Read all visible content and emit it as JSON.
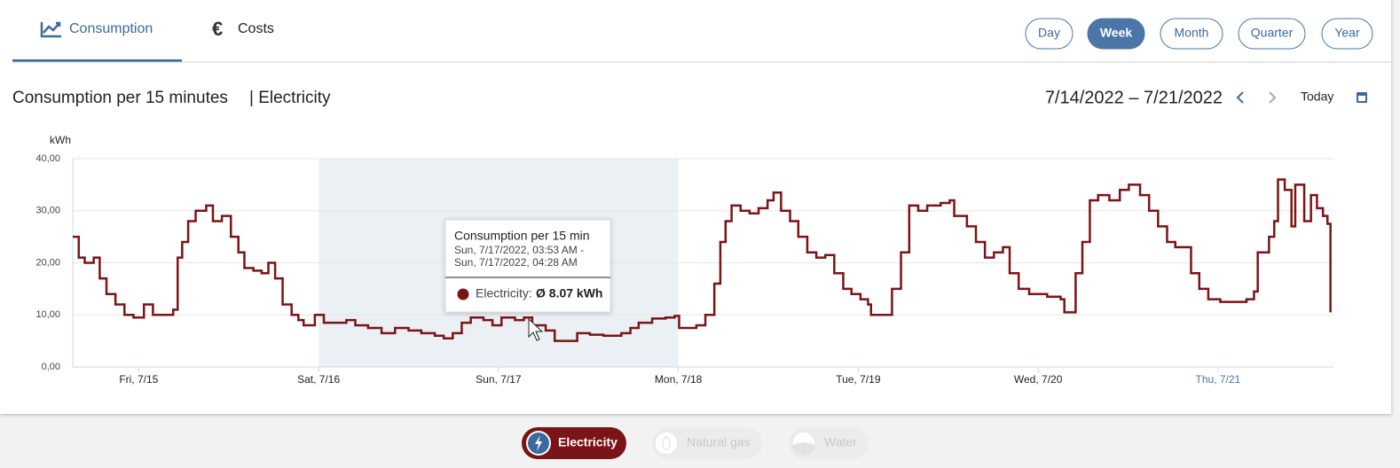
{
  "tabs": [
    "Consumption",
    "Costs"
  ],
  "periods": [
    "Day",
    "Week",
    "Month",
    "Quarter",
    "Year"
  ],
  "active_period": 1,
  "heading": {
    "title": "Consumption per 15 minutes",
    "medium": "| Electricity"
  },
  "date_range": "7/14/2022 – 7/21/2022",
  "today": "Today",
  "tooltip": {
    "title": "Consumption per 15 min",
    "range_start": "Sun, 7/17/2022, 03:53 AM -",
    "range_end": "Sun, 7/17/2022, 04:28 AM",
    "series": "Electricity:",
    "value": "Ø 8.07 kWh"
  },
  "media": [
    "Natural gas",
    "Water"
  ],
  "chart_data": {
    "type": "line",
    "step": true,
    "y_label": "kWh",
    "x": [
      -8.8,
      -8.0,
      -7.2,
      -6.0,
      -5.2,
      -4.3,
      -3.1,
      -1.9,
      -0.7,
      0.7,
      1.9,
      3.4,
      4.6,
      5.2,
      5.8,
      6.6,
      7.6,
      9.0,
      9.9,
      11.1,
      12.3,
      13.3,
      14.1,
      15.3,
      16.4,
      17.3,
      18.2,
      19.2,
      20.4,
      21.3,
      22.0,
      23.5,
      24.7,
      26.5,
      27.7,
      28.9,
      30.6,
      32.4,
      34.2,
      36.0,
      37.7,
      39.5,
      40.7,
      41.9,
      43.1,
      44.3,
      46.0,
      47.2,
      48.4,
      50.2,
      51.4,
      52.5,
      54.3,
      55.5,
      57.3,
      58.5,
      60.2,
      62.0,
      63.2,
      64.4,
      65.6,
      66.7,
      68.5,
      70.3,
      71.5,
      72.1,
      74.4,
      75.6,
      76.8,
      77.6,
      78.3,
      79.1,
      80.3,
      81.5,
      82.7,
      83.9,
      84.7,
      85.7,
      86.9,
      88.0,
      89.2,
      90.4,
      91.6,
      92.8,
      94.0,
      95.1,
      96.3,
      97.3,
      97.7,
      99.9,
      100.5,
      101.7,
      102.8,
      104.0,
      105.2,
      107.0,
      108.2,
      108.8,
      110.5,
      111.7,
      112.9,
      114.1,
      115.3,
      116.2,
      117.4,
      118.8,
      121.2,
      123.0,
      123.5,
      125.0,
      125.9,
      126.9,
      128.0,
      129.5,
      130.9,
      132.1,
      133.6,
      134.8,
      136.0,
      137.2,
      138.3,
      139.5,
      140.4,
      141.5,
      142.7,
      144.3,
      146.3,
      147.8,
      148.8,
      149.3,
      150.8,
      151.5,
      152.0,
      152.9,
      153.8,
      154.3,
      155.5,
      156.4,
      157.2,
      158.0,
      158.6,
      159.0
    ],
    "series": [
      {
        "name": "Electricity",
        "color": "#7b1416",
        "values": [
          25,
          21,
          20,
          21,
          17,
          14,
          12,
          10,
          9.5,
          12,
          10,
          10,
          11,
          21,
          24,
          28,
          30,
          31,
          28,
          29,
          25,
          22,
          19,
          18.5,
          18,
          20,
          17,
          12,
          10,
          9,
          8,
          10,
          8.5,
          8.5,
          9,
          8,
          7.5,
          6.5,
          7.5,
          7,
          6.5,
          6,
          5.5,
          6.5,
          8.5,
          9.5,
          9,
          8,
          9.5,
          9,
          9.5,
          8,
          7,
          5,
          5,
          6.5,
          6.2,
          6,
          6,
          6.5,
          7.5,
          8.5,
          9.3,
          9.5,
          9.8,
          7.5,
          8,
          10,
          16,
          24,
          28,
          31,
          30,
          29.5,
          30.5,
          32,
          33.5,
          30,
          28,
          25,
          22,
          21,
          21.5,
          18,
          15,
          14,
          13,
          12,
          10,
          10,
          15,
          22,
          31,
          30,
          31,
          31.5,
          32,
          29,
          27,
          24,
          21,
          22,
          23,
          18,
          15,
          14,
          13.5,
          13,
          10.5,
          18,
          24,
          32,
          33,
          32,
          34,
          35,
          33,
          30,
          27,
          24,
          23,
          23,
          18,
          15,
          13,
          12.5,
          12.5,
          13,
          14.5,
          22,
          25,
          28,
          36,
          34,
          27,
          35,
          28,
          33,
          30.5,
          29,
          27.5,
          10.5
        ]
      }
    ],
    "xlim": [
      -8.8,
      159.4
    ],
    "ylim": [
      0,
      40
    ],
    "xticks": [
      {
        "value": 0,
        "label": "Fri, 7/15"
      },
      {
        "value": 24,
        "label": "Sat, 7/16"
      },
      {
        "value": 48,
        "label": "Sun, 7/17"
      },
      {
        "value": 72,
        "label": "Mon, 7/18"
      },
      {
        "value": 96,
        "label": "Tue, 7/19"
      },
      {
        "value": 120,
        "label": "Wed, 7/20"
      },
      {
        "value": 144,
        "label": "Thu, 7/21"
      }
    ],
    "yticks": [
      {
        "value": 0,
        "label": "0,00"
      },
      {
        "value": 10,
        "label": "10,00"
      },
      {
        "value": 20,
        "label": "20,00"
      },
      {
        "value": 30,
        "label": "30,00"
      },
      {
        "value": 40,
        "label": "40,00"
      }
    ],
    "grid": true,
    "weekend_shading": "#ebf0f5",
    "today_color": "#4a76a8"
  }
}
